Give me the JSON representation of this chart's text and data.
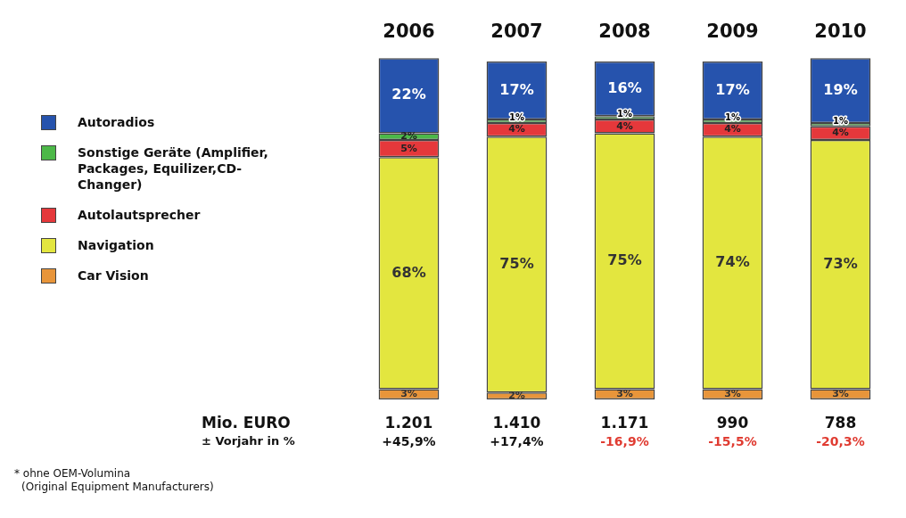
{
  "chart_data": {
    "type": "bar",
    "stacked": true,
    "categories": [
      "2006",
      "2007",
      "2008",
      "2009",
      "2010"
    ],
    "legend": "left",
    "series": [
      {
        "name": "Car Vision",
        "color": "#e8953a",
        "values": [
          3,
          2,
          3,
          3,
          3
        ],
        "value_labels": [
          "3%",
          "2%",
          "3%",
          "3%",
          "3%"
        ]
      },
      {
        "name": "Navigation",
        "color": "#e3e63f",
        "values": [
          68,
          75,
          75,
          74,
          73
        ],
        "value_labels": [
          "68%",
          "75%",
          "75%",
          "74%",
          "73%"
        ]
      },
      {
        "name": "Autolautsprecher",
        "color": "#e5383b",
        "values": [
          5,
          4,
          4,
          4,
          4
        ],
        "value_labels": [
          "5%",
          "4%",
          "4%",
          "4%",
          "4%"
        ]
      },
      {
        "name": "Sonstige Geräte (Amplifier, Packages, Equilizer,CD-Changer)",
        "color": "#4cb848",
        "values": [
          2,
          1,
          1,
          1,
          1
        ],
        "value_labels": [
          "2%",
          "1%",
          "1%",
          "1%",
          "1%"
        ]
      },
      {
        "name": "Autoradios",
        "color": "#2653ad",
        "values": [
          22,
          17,
          16,
          17,
          19
        ],
        "value_labels": [
          "22%",
          "17%",
          "16%",
          "17%",
          "19%"
        ]
      }
    ],
    "annotations": [
      "Mio. EURO",
      "1.201",
      "1.410",
      "1.171",
      "990",
      "788",
      "± Vorjahr in %",
      "+45,9%",
      "+17,4%",
      "-16,9%",
      "-15,5%",
      "-20,3%",
      "* ohne OEM-Volumina",
      "(Original Equipment Manufacturers)"
    ]
  }
}
